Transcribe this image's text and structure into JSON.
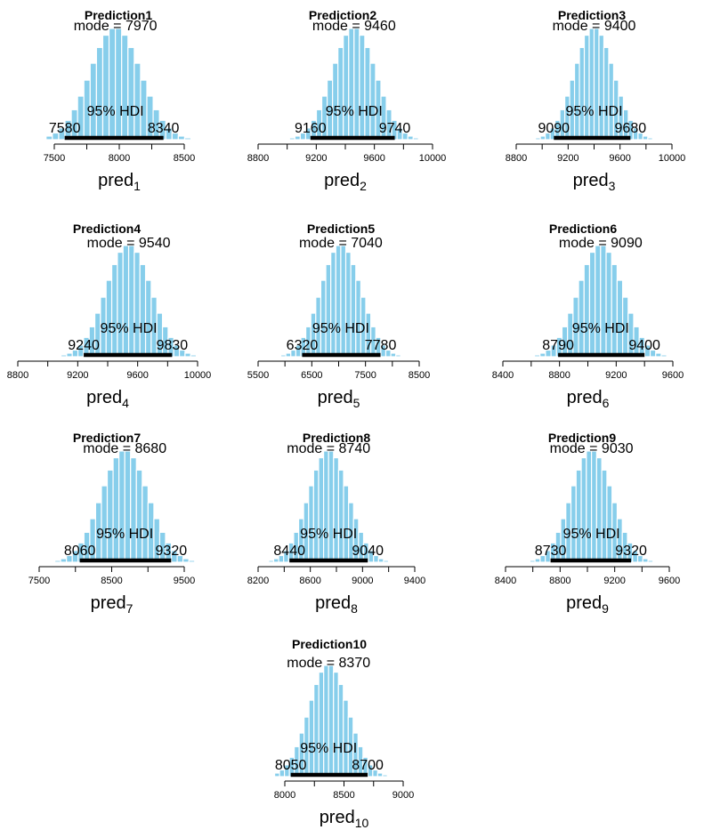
{
  "colors": {
    "bar": "#87ceeb",
    "bar_edge": "#ffffff",
    "hdi": "#000000",
    "axis": "#000000",
    "text": "#000000"
  },
  "labels": {
    "mode_prefix": "mode",
    "hdi_label": "95% HDI",
    "var_base": "pred"
  },
  "chart_data": [
    {
      "type": "histogram",
      "title": "Prediction1",
      "xlabel_base": "pred",
      "xlabel_sub": "1",
      "mode": 7970,
      "hdi": [
        7580,
        8340
      ],
      "xlim": [
        7500,
        8500
      ],
      "xticks": [
        7500,
        8000,
        8500
      ]
    },
    {
      "type": "histogram",
      "title": "Prediction2",
      "xlabel_base": "pred",
      "xlabel_sub": "2",
      "mode": 9460,
      "hdi": [
        9160,
        9740
      ],
      "xlim": [
        8800,
        10000
      ],
      "xticks": [
        8800,
        9200,
        9600,
        10000
      ]
    },
    {
      "type": "histogram",
      "title": "Prediction3",
      "xlabel_base": "pred",
      "xlabel_sub": "3",
      "mode": 9400,
      "hdi": [
        9090,
        9680
      ],
      "xlim": [
        8800,
        10000
      ],
      "xticks": [
        8800,
        9200,
        9600,
        10000
      ]
    },
    {
      "type": "histogram",
      "title": "Prediction4",
      "xlabel_base": "pred",
      "xlabel_sub": "4",
      "mode": 9540,
      "hdi": [
        9240,
        9830
      ],
      "xlim": [
        8800,
        10000
      ],
      "xticks": [
        8800,
        9200,
        9600,
        10000
      ]
    },
    {
      "type": "histogram",
      "title": "Prediction5",
      "xlabel_base": "pred",
      "xlabel_sub": "5",
      "mode": 7040,
      "hdi": [
        6320,
        7780
      ],
      "xlim": [
        5500,
        8500
      ],
      "xticks": [
        5500,
        6500,
        7500,
        8500
      ]
    },
    {
      "type": "histogram",
      "title": "Prediction6",
      "xlabel_base": "pred",
      "xlabel_sub": "6",
      "mode": 9090,
      "hdi": [
        8790,
        9400
      ],
      "xlim": [
        8400,
        9600
      ],
      "xticks": [
        8400,
        8800,
        9200,
        9600
      ]
    },
    {
      "type": "histogram",
      "title": "Prediction7",
      "xlabel_base": "pred",
      "xlabel_sub": "7",
      "mode": 8680,
      "hdi": [
        8060,
        9320
      ],
      "xlim": [
        7500,
        9500
      ],
      "xticks": [
        7500,
        8500,
        9500
      ]
    },
    {
      "type": "histogram",
      "title": "Prediction8",
      "xlabel_base": "pred",
      "xlabel_sub": "8",
      "mode": 8740,
      "hdi": [
        8440,
        9040
      ],
      "xlim": [
        8200,
        9400
      ],
      "xticks": [
        8200,
        8600,
        9000,
        9400
      ]
    },
    {
      "type": "histogram",
      "title": "Prediction9",
      "xlabel_base": "pred",
      "xlabel_sub": "9",
      "mode": 9030,
      "hdi": [
        8730,
        9320
      ],
      "xlim": [
        8400,
        9600
      ],
      "xticks": [
        8400,
        8800,
        9200,
        9600
      ]
    },
    {
      "type": "histogram",
      "title": "Prediction10",
      "xlabel_base": "pred",
      "xlabel_sub": "10",
      "mode": 8370,
      "hdi": [
        8050,
        8700
      ],
      "xlim": [
        8000,
        9000
      ],
      "xticks": [
        8000,
        8500,
        9000
      ]
    }
  ]
}
